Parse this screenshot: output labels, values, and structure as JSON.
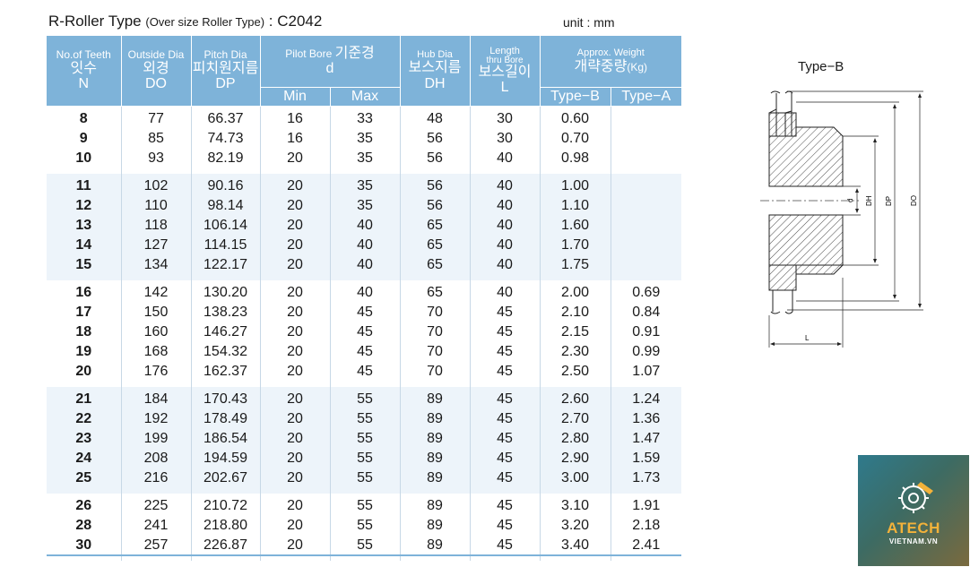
{
  "header": {
    "title_main": "R-Roller Type",
    "title_sub": "(Over size Roller Type)",
    "title_code": ": C2042",
    "unit": "unit : mm"
  },
  "columns": {
    "teeth": {
      "en": "No.of Teeth",
      "ko": "잇수",
      "sym": "N"
    },
    "outside": {
      "en": "Outside Dia",
      "ko": "외경",
      "sym": "DO"
    },
    "pitch": {
      "en": "Pitch Dia",
      "ko": "피치원지름",
      "sym": "DP"
    },
    "pilot": {
      "en": "Pilot Bore",
      "ko": "기준경",
      "sym": "d",
      "min": "Min",
      "max": "Max"
    },
    "hub": {
      "en": "Hub Dia",
      "ko": "보스지름",
      "sym": "DH"
    },
    "length": {
      "en": "Length",
      "en2": "thru Bore",
      "ko": "보스길이",
      "sym": "L"
    },
    "weight": {
      "en": "Approx. Weight",
      "ko": "개략중량",
      "unit": "(Kg)",
      "type_b": "Type−B",
      "type_a": "Type−A"
    }
  },
  "groups": [
    {
      "rows": [
        {
          "n": "8",
          "do": "77",
          "dp": "66.37",
          "min": "16",
          "max": "33",
          "dh": "48",
          "l": "30",
          "wb": "0.60",
          "wa": ""
        },
        {
          "n": "9",
          "do": "85",
          "dp": "74.73",
          "min": "16",
          "max": "35",
          "dh": "56",
          "l": "30",
          "wb": "0.70",
          "wa": ""
        },
        {
          "n": "10",
          "do": "93",
          "dp": "82.19",
          "min": "20",
          "max": "35",
          "dh": "56",
          "l": "40",
          "wb": "0.98",
          "wa": ""
        }
      ]
    },
    {
      "rows": [
        {
          "n": "11",
          "do": "102",
          "dp": "90.16",
          "min": "20",
          "max": "35",
          "dh": "56",
          "l": "40",
          "wb": "1.00",
          "wa": ""
        },
        {
          "n": "12",
          "do": "110",
          "dp": "98.14",
          "min": "20",
          "max": "35",
          "dh": "56",
          "l": "40",
          "wb": "1.10",
          "wa": ""
        },
        {
          "n": "13",
          "do": "118",
          "dp": "106.14",
          "min": "20",
          "max": "40",
          "dh": "65",
          "l": "40",
          "wb": "1.60",
          "wa": ""
        },
        {
          "n": "14",
          "do": "127",
          "dp": "114.15",
          "min": "20",
          "max": "40",
          "dh": "65",
          "l": "40",
          "wb": "1.70",
          "wa": ""
        },
        {
          "n": "15",
          "do": "134",
          "dp": "122.17",
          "min": "20",
          "max": "40",
          "dh": "65",
          "l": "40",
          "wb": "1.75",
          "wa": ""
        }
      ]
    },
    {
      "rows": [
        {
          "n": "16",
          "do": "142",
          "dp": "130.20",
          "min": "20",
          "max": "40",
          "dh": "65",
          "l": "40",
          "wb": "2.00",
          "wa": "0.69"
        },
        {
          "n": "17",
          "do": "150",
          "dp": "138.23",
          "min": "20",
          "max": "45",
          "dh": "70",
          "l": "45",
          "wb": "2.10",
          "wa": "0.84"
        },
        {
          "n": "18",
          "do": "160",
          "dp": "146.27",
          "min": "20",
          "max": "45",
          "dh": "70",
          "l": "45",
          "wb": "2.15",
          "wa": "0.91"
        },
        {
          "n": "19",
          "do": "168",
          "dp": "154.32",
          "min": "20",
          "max": "45",
          "dh": "70",
          "l": "45",
          "wb": "2.30",
          "wa": "0.99"
        },
        {
          "n": "20",
          "do": "176",
          "dp": "162.37",
          "min": "20",
          "max": "45",
          "dh": "70",
          "l": "45",
          "wb": "2.50",
          "wa": "1.07"
        }
      ]
    },
    {
      "rows": [
        {
          "n": "21",
          "do": "184",
          "dp": "170.43",
          "min": "20",
          "max": "55",
          "dh": "89",
          "l": "45",
          "wb": "2.60",
          "wa": "1.24"
        },
        {
          "n": "22",
          "do": "192",
          "dp": "178.49",
          "min": "20",
          "max": "55",
          "dh": "89",
          "l": "45",
          "wb": "2.70",
          "wa": "1.36"
        },
        {
          "n": "23",
          "do": "199",
          "dp": "186.54",
          "min": "20",
          "max": "55",
          "dh": "89",
          "l": "45",
          "wb": "2.80",
          "wa": "1.47"
        },
        {
          "n": "24",
          "do": "208",
          "dp": "194.59",
          "min": "20",
          "max": "55",
          "dh": "89",
          "l": "45",
          "wb": "2.90",
          "wa": "1.59"
        },
        {
          "n": "25",
          "do": "216",
          "dp": "202.67",
          "min": "20",
          "max": "55",
          "dh": "89",
          "l": "45",
          "wb": "3.00",
          "wa": "1.73"
        }
      ]
    },
    {
      "rows": [
        {
          "n": "26",
          "do": "225",
          "dp": "210.72",
          "min": "20",
          "max": "55",
          "dh": "89",
          "l": "45",
          "wb": "3.10",
          "wa": "1.91"
        },
        {
          "n": "28",
          "do": "241",
          "dp": "218.80",
          "min": "20",
          "max": "55",
          "dh": "89",
          "l": "45",
          "wb": "3.20",
          "wa": "2.18"
        },
        {
          "n": "30",
          "do": "257",
          "dp": "226.87",
          "min": "20",
          "max": "55",
          "dh": "89",
          "l": "45",
          "wb": "3.40",
          "wa": "2.41"
        }
      ]
    }
  ],
  "diagram": {
    "title": "Type−B",
    "labels": {
      "d": "d",
      "dh": "DH",
      "dp": "DP",
      "do": "DO",
      "l": "L"
    }
  },
  "logo": {
    "brand": "ATECH",
    "site": "VIETNAM.VN"
  },
  "colors": {
    "header_bg": "#7eb3d9",
    "row_shade": "#edf4fa",
    "logo_accent": "#f3b23a"
  }
}
